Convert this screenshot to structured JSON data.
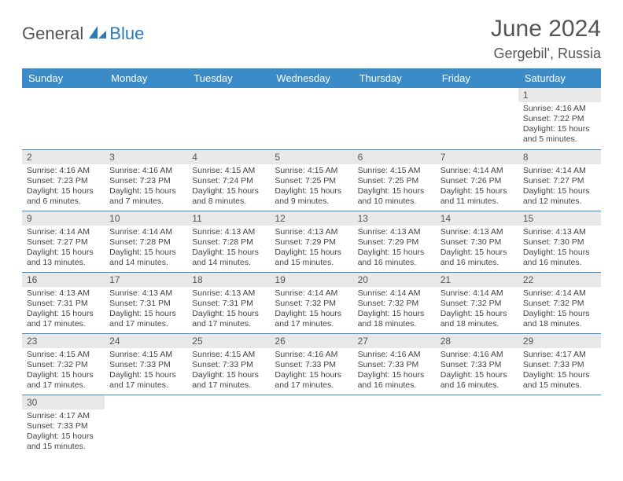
{
  "brand": {
    "part1": "General",
    "part2": "Blue"
  },
  "title": "June 2024",
  "location": "Gergebil', Russia",
  "colors": {
    "accent": "#3b8bc8",
    "grayBg": "#e8e8e8",
    "text": "#444"
  },
  "weekdays": [
    "Sunday",
    "Monday",
    "Tuesday",
    "Wednesday",
    "Thursday",
    "Friday",
    "Saturday"
  ],
  "weeks": [
    [
      null,
      null,
      null,
      null,
      null,
      null,
      {
        "n": "1",
        "sr": "Sunrise: 4:16 AM",
        "ss": "Sunset: 7:22 PM",
        "dl": "Daylight: 15 hours and 5 minutes."
      }
    ],
    [
      {
        "n": "2",
        "sr": "Sunrise: 4:16 AM",
        "ss": "Sunset: 7:23 PM",
        "dl": "Daylight: 15 hours and 6 minutes."
      },
      {
        "n": "3",
        "sr": "Sunrise: 4:16 AM",
        "ss": "Sunset: 7:23 PM",
        "dl": "Daylight: 15 hours and 7 minutes."
      },
      {
        "n": "4",
        "sr": "Sunrise: 4:15 AM",
        "ss": "Sunset: 7:24 PM",
        "dl": "Daylight: 15 hours and 8 minutes."
      },
      {
        "n": "5",
        "sr": "Sunrise: 4:15 AM",
        "ss": "Sunset: 7:25 PM",
        "dl": "Daylight: 15 hours and 9 minutes."
      },
      {
        "n": "6",
        "sr": "Sunrise: 4:15 AM",
        "ss": "Sunset: 7:25 PM",
        "dl": "Daylight: 15 hours and 10 minutes."
      },
      {
        "n": "7",
        "sr": "Sunrise: 4:14 AM",
        "ss": "Sunset: 7:26 PM",
        "dl": "Daylight: 15 hours and 11 minutes."
      },
      {
        "n": "8",
        "sr": "Sunrise: 4:14 AM",
        "ss": "Sunset: 7:27 PM",
        "dl": "Daylight: 15 hours and 12 minutes."
      }
    ],
    [
      {
        "n": "9",
        "sr": "Sunrise: 4:14 AM",
        "ss": "Sunset: 7:27 PM",
        "dl": "Daylight: 15 hours and 13 minutes."
      },
      {
        "n": "10",
        "sr": "Sunrise: 4:14 AM",
        "ss": "Sunset: 7:28 PM",
        "dl": "Daylight: 15 hours and 14 minutes."
      },
      {
        "n": "11",
        "sr": "Sunrise: 4:13 AM",
        "ss": "Sunset: 7:28 PM",
        "dl": "Daylight: 15 hours and 14 minutes."
      },
      {
        "n": "12",
        "sr": "Sunrise: 4:13 AM",
        "ss": "Sunset: 7:29 PM",
        "dl": "Daylight: 15 hours and 15 minutes."
      },
      {
        "n": "13",
        "sr": "Sunrise: 4:13 AM",
        "ss": "Sunset: 7:29 PM",
        "dl": "Daylight: 15 hours and 16 minutes."
      },
      {
        "n": "14",
        "sr": "Sunrise: 4:13 AM",
        "ss": "Sunset: 7:30 PM",
        "dl": "Daylight: 15 hours and 16 minutes."
      },
      {
        "n": "15",
        "sr": "Sunrise: 4:13 AM",
        "ss": "Sunset: 7:30 PM",
        "dl": "Daylight: 15 hours and 16 minutes."
      }
    ],
    [
      {
        "n": "16",
        "sr": "Sunrise: 4:13 AM",
        "ss": "Sunset: 7:31 PM",
        "dl": "Daylight: 15 hours and 17 minutes."
      },
      {
        "n": "17",
        "sr": "Sunrise: 4:13 AM",
        "ss": "Sunset: 7:31 PM",
        "dl": "Daylight: 15 hours and 17 minutes."
      },
      {
        "n": "18",
        "sr": "Sunrise: 4:13 AM",
        "ss": "Sunset: 7:31 PM",
        "dl": "Daylight: 15 hours and 17 minutes."
      },
      {
        "n": "19",
        "sr": "Sunrise: 4:14 AM",
        "ss": "Sunset: 7:32 PM",
        "dl": "Daylight: 15 hours and 17 minutes."
      },
      {
        "n": "20",
        "sr": "Sunrise: 4:14 AM",
        "ss": "Sunset: 7:32 PM",
        "dl": "Daylight: 15 hours and 18 minutes."
      },
      {
        "n": "21",
        "sr": "Sunrise: 4:14 AM",
        "ss": "Sunset: 7:32 PM",
        "dl": "Daylight: 15 hours and 18 minutes."
      },
      {
        "n": "22",
        "sr": "Sunrise: 4:14 AM",
        "ss": "Sunset: 7:32 PM",
        "dl": "Daylight: 15 hours and 18 minutes."
      }
    ],
    [
      {
        "n": "23",
        "sr": "Sunrise: 4:15 AM",
        "ss": "Sunset: 7:32 PM",
        "dl": "Daylight: 15 hours and 17 minutes."
      },
      {
        "n": "24",
        "sr": "Sunrise: 4:15 AM",
        "ss": "Sunset: 7:33 PM",
        "dl": "Daylight: 15 hours and 17 minutes."
      },
      {
        "n": "25",
        "sr": "Sunrise: 4:15 AM",
        "ss": "Sunset: 7:33 PM",
        "dl": "Daylight: 15 hours and 17 minutes."
      },
      {
        "n": "26",
        "sr": "Sunrise: 4:16 AM",
        "ss": "Sunset: 7:33 PM",
        "dl": "Daylight: 15 hours and 17 minutes."
      },
      {
        "n": "27",
        "sr": "Sunrise: 4:16 AM",
        "ss": "Sunset: 7:33 PM",
        "dl": "Daylight: 15 hours and 16 minutes."
      },
      {
        "n": "28",
        "sr": "Sunrise: 4:16 AM",
        "ss": "Sunset: 7:33 PM",
        "dl": "Daylight: 15 hours and 16 minutes."
      },
      {
        "n": "29",
        "sr": "Sunrise: 4:17 AM",
        "ss": "Sunset: 7:33 PM",
        "dl": "Daylight: 15 hours and 15 minutes."
      }
    ],
    [
      {
        "n": "30",
        "sr": "Sunrise: 4:17 AM",
        "ss": "Sunset: 7:33 PM",
        "dl": "Daylight: 15 hours and 15 minutes."
      },
      null,
      null,
      null,
      null,
      null,
      null
    ]
  ]
}
